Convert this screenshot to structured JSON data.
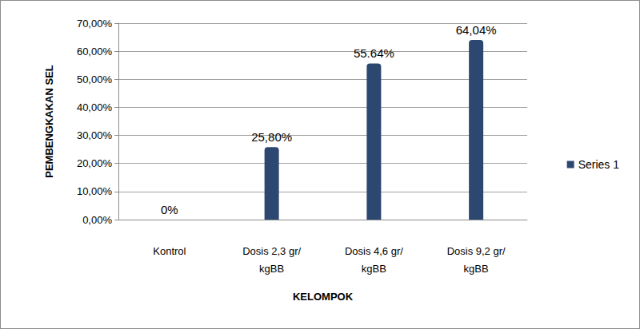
{
  "chart_data": {
    "type": "bar",
    "x_label": "KELOMPOK",
    "y_label": "PEMBENGKAKAN SEL",
    "categories": [
      "Kontrol",
      "Dosis 2,3 gr/kgBB",
      "Dosis 4,6 gr/kgBB",
      "Dosis 9,2 gr/kgBB"
    ],
    "series": [
      {
        "name": "Series 1",
        "color": "#2c4770",
        "values": [
          0,
          25.8,
          55.64,
          64.04
        ],
        "value_labels": [
          "0%",
          "25,80%",
          "55.64%",
          "64,04%"
        ]
      }
    ],
    "ylim": [
      0,
      70
    ],
    "yticks": [
      {
        "value": 0,
        "label": "0,00%"
      },
      {
        "value": 10,
        "label": "10,00%"
      },
      {
        "value": 20,
        "label": "20,00%"
      },
      {
        "value": 30,
        "label": "30,00%"
      },
      {
        "value": 40,
        "label": "40,00%"
      },
      {
        "value": 50,
        "label": "50,00%"
      },
      {
        "value": 60,
        "label": "60,00%"
      },
      {
        "value": 70,
        "label": "70,00%"
      }
    ],
    "grid": true,
    "legend": "right",
    "data_labels": true
  }
}
